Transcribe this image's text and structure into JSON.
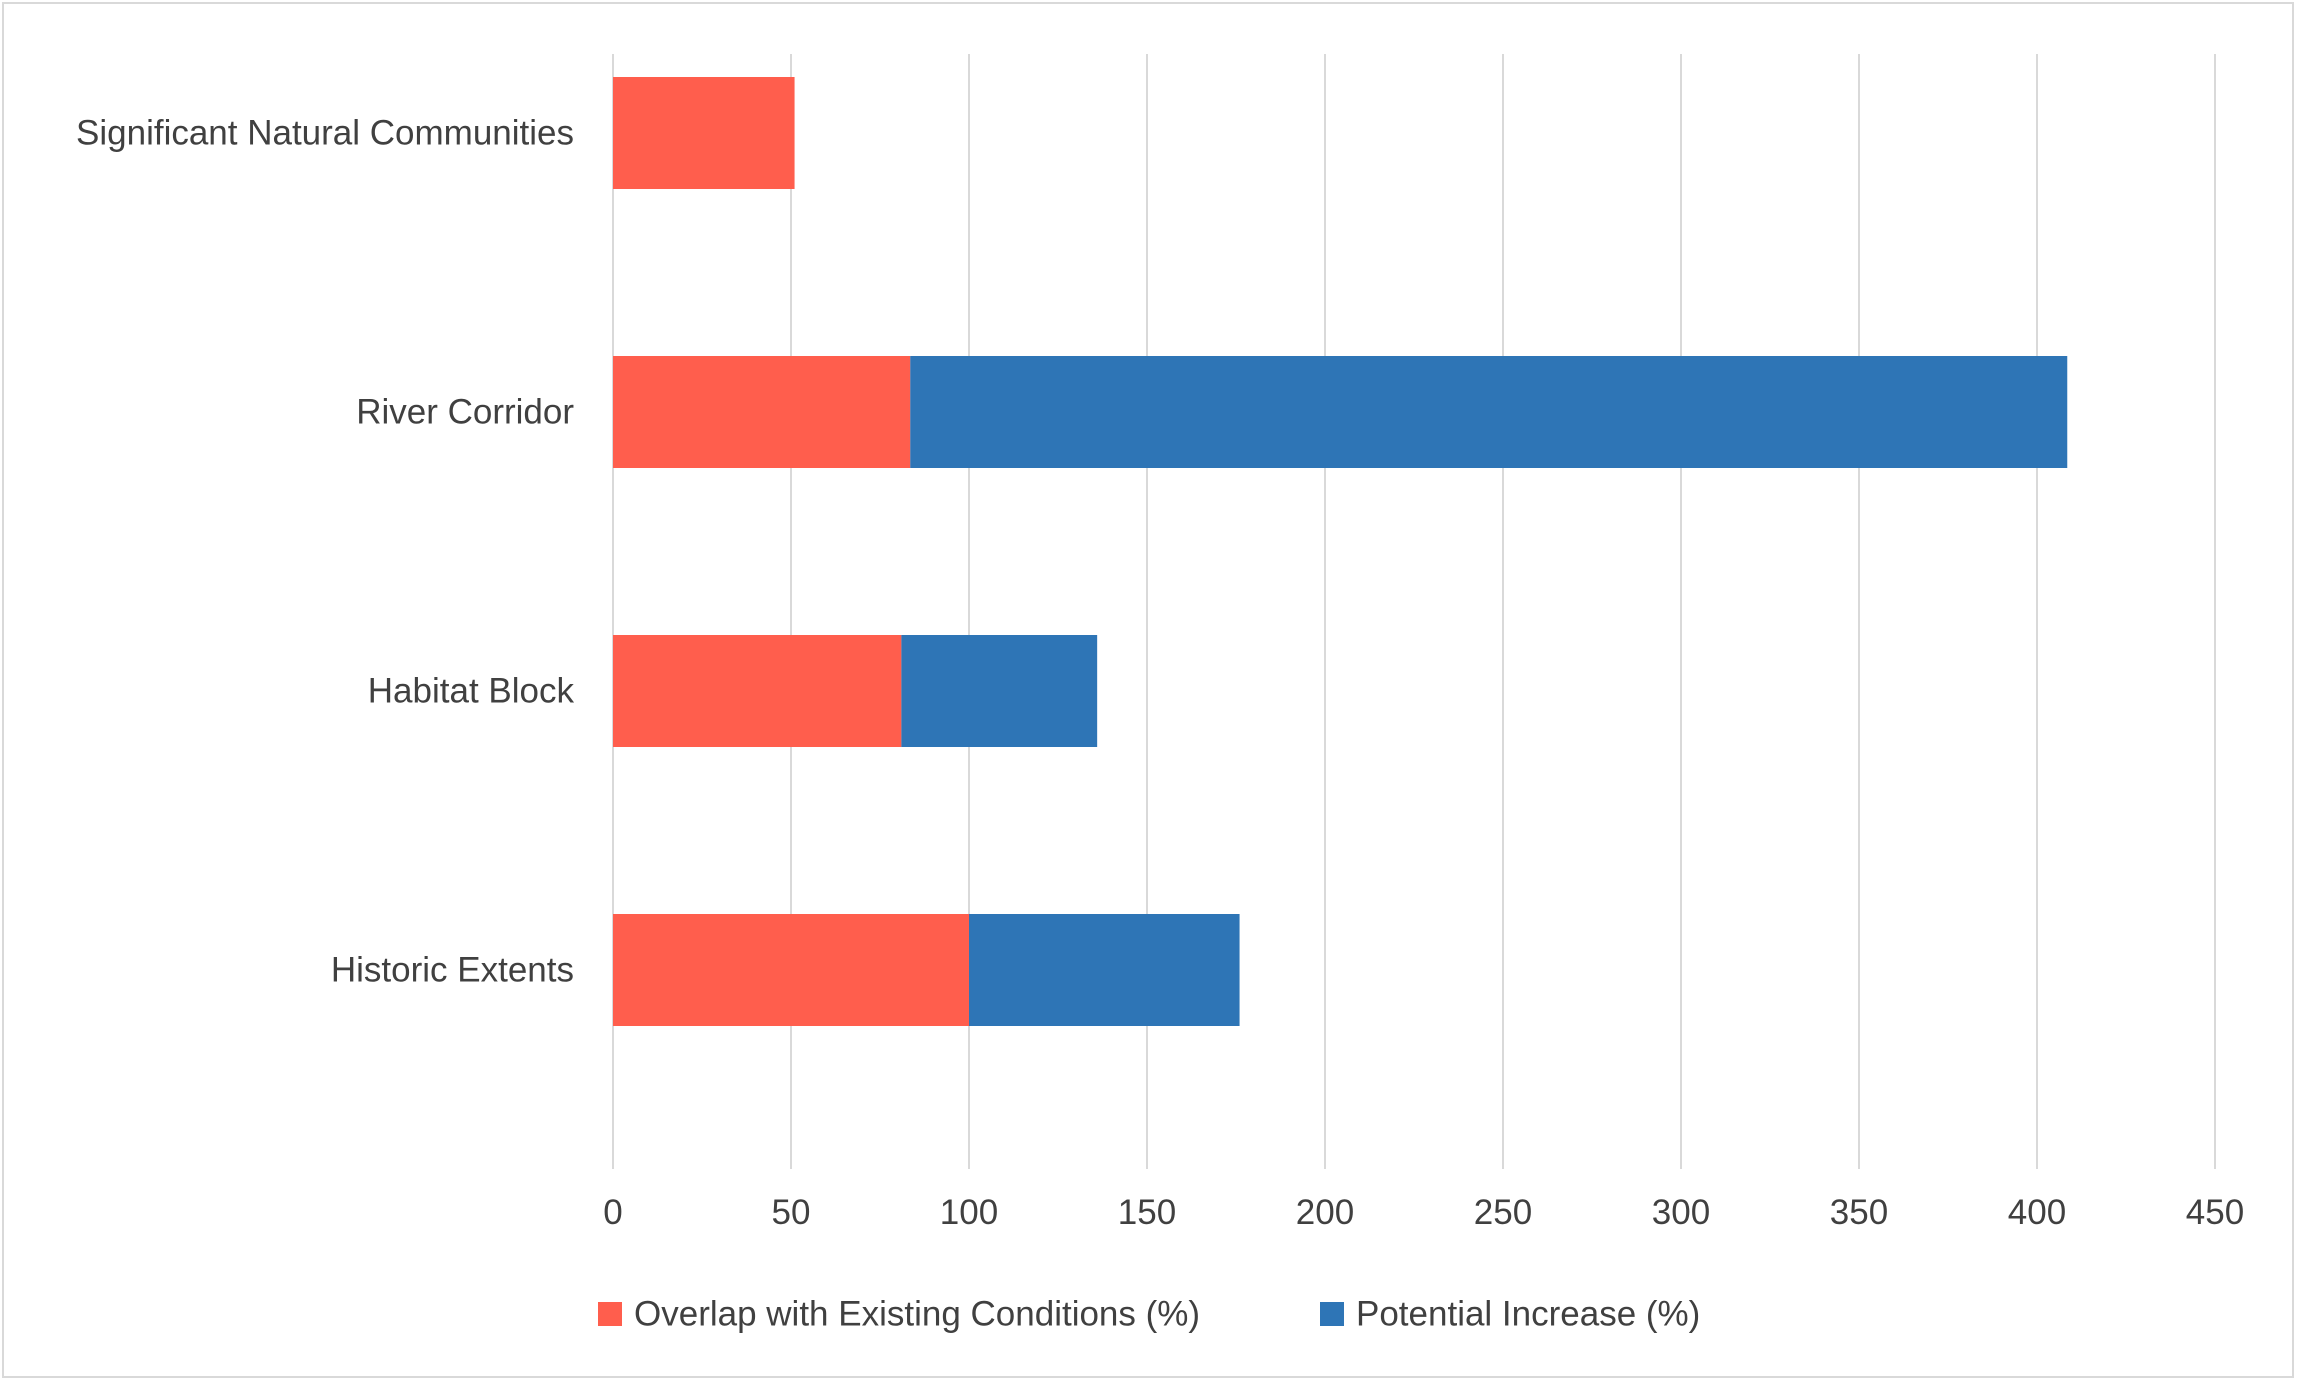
{
  "chart_data": {
    "type": "bar",
    "orientation": "horizontal",
    "stacked": true,
    "categories": [
      "Significant Natural Communities",
      "River Corridor",
      "Habitat Block",
      "Historic Extents"
    ],
    "series": [
      {
        "name": "Overlap with Existing Conditions (%)",
        "color": "#FF5E4D",
        "values": [
          51,
          83.5,
          81,
          100
        ]
      },
      {
        "name": "Potential Increase (%)",
        "color": "#2E75B6",
        "values": [
          0,
          325,
          55,
          76
        ]
      }
    ],
    "title": "",
    "xlabel": "",
    "ylabel": "",
    "xlim": [
      0,
      450
    ],
    "xticks": [
      0,
      50,
      100,
      150,
      200,
      250,
      300,
      350,
      400,
      450
    ],
    "grid": "vertical",
    "grid_color": "#d9d9d9",
    "legend": "bottom"
  }
}
